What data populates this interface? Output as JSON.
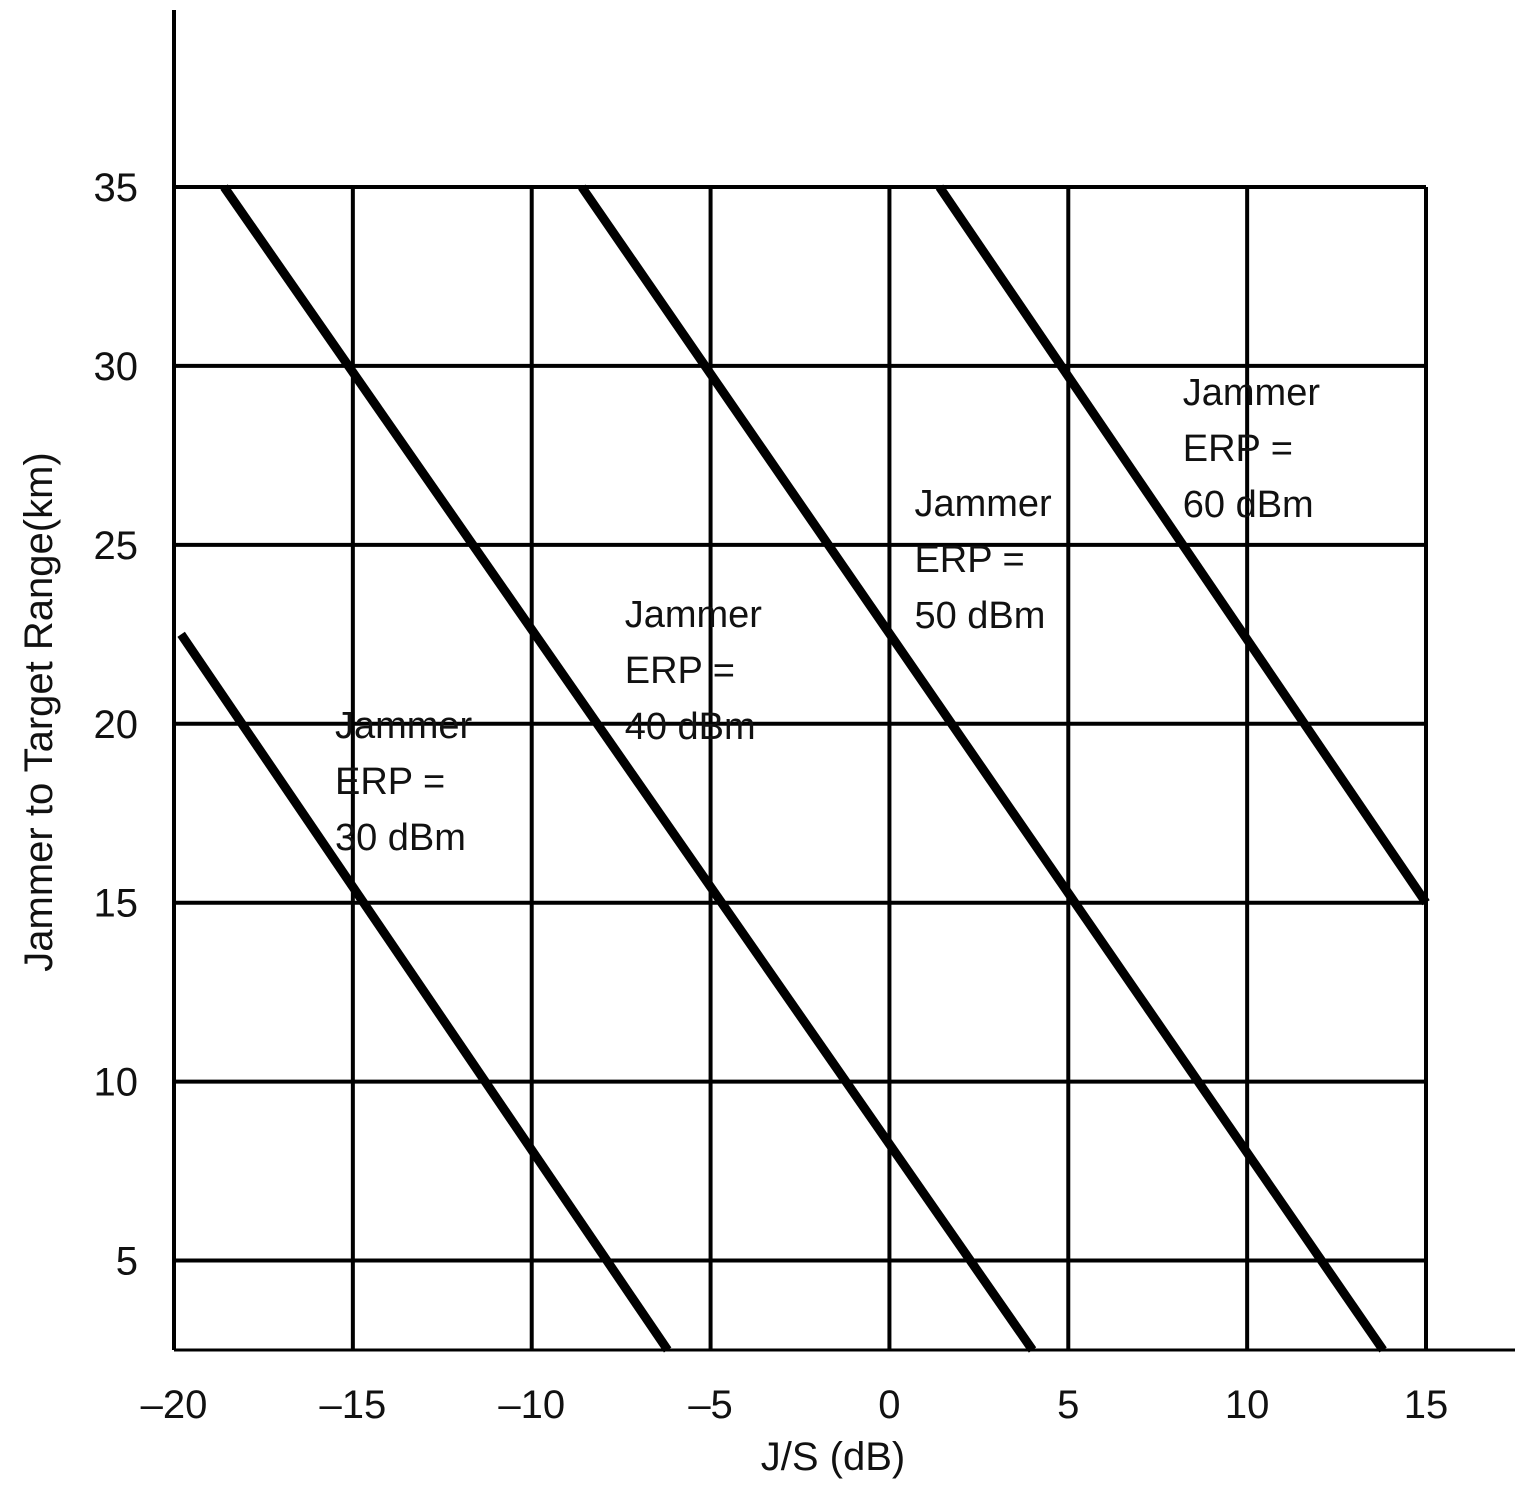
{
  "chart_data": {
    "type": "line",
    "title": "",
    "xlabel": "J/S (dB)",
    "ylabel": "Jammer to Target  Range(km)",
    "xlim": [
      -20,
      15
    ],
    "ylim": [
      2.5,
      35
    ],
    "x_ticks": [
      -20,
      -15,
      -10,
      -5,
      0,
      5,
      10,
      15
    ],
    "x_tick_labels": [
      "–20",
      "–15",
      "–10",
      "–5",
      "0",
      "5",
      "10",
      "15"
    ],
    "y_ticks": [
      5,
      10,
      15,
      20,
      25,
      30,
      35
    ],
    "y_tick_labels": [
      "5",
      "10",
      "15",
      "20",
      "25",
      "30",
      "35"
    ],
    "grid": true,
    "legend": "none",
    "line_color": "#000000",
    "series": [
      {
        "label_lines": [
          "Jammer",
          "ERP =",
          "30 dBm"
        ],
        "points": [
          [
            -19.8,
            22.5
          ],
          [
            -6.2,
            2.5
          ]
        ],
        "label_anchor": [
          -15.5,
          20
        ]
      },
      {
        "label_lines": [
          "Jammer",
          "ERP =",
          "40 dBm"
        ],
        "points": [
          [
            -18.6,
            35
          ],
          [
            4.0,
            2.5
          ]
        ],
        "label_anchor": [
          -7.4,
          23.1
        ]
      },
      {
        "label_lines": [
          "Jammer",
          "ERP =",
          "50 dBm"
        ],
        "points": [
          [
            -8.6,
            35
          ],
          [
            13.8,
            2.5
          ]
        ],
        "label_anchor": [
          0.7,
          26.2
        ]
      },
      {
        "label_lines": [
          "Jammer",
          "ERP =",
          "60 dBm"
        ],
        "points": [
          [
            1.4,
            35
          ],
          [
            15.0,
            15.0
          ]
        ],
        "label_anchor": [
          8.2,
          29.3
        ]
      }
    ]
  }
}
